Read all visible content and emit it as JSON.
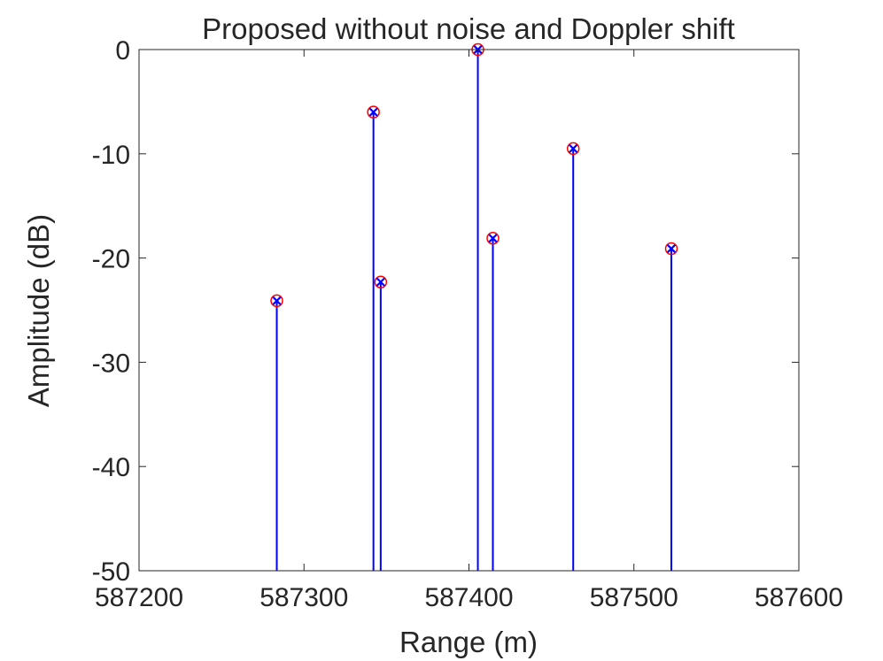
{
  "chart_data": {
    "type": "stem",
    "title": "Proposed without noise and Doppler shift",
    "xlabel": "Range (m)",
    "ylabel": "Amplitude (dB)",
    "xlim": [
      587200,
      587600
    ],
    "ylim": [
      -50,
      0
    ],
    "xticks": [
      587200,
      587300,
      587400,
      587500,
      587600
    ],
    "xtick_labels": [
      "587200",
      "587300",
      "587400",
      "587500",
      "587600"
    ],
    "yticks": [
      0,
      -10,
      -20,
      -30,
      -40,
      -50
    ],
    "ytick_labels": [
      "0",
      "-10",
      "-20",
      "-30",
      "-40",
      "-50"
    ],
    "grid": false,
    "series": [
      {
        "marker": "x",
        "color": "#0000ff",
        "points": [
          {
            "x": 587283.5,
            "y": -24.1
          },
          {
            "x": 587342.1,
            "y": -6.0
          },
          {
            "x": 587346.5,
            "y": -22.3
          },
          {
            "x": 587405.4,
            "y": 0.0
          },
          {
            "x": 587414.5,
            "y": -18.1
          },
          {
            "x": 587463.2,
            "y": -9.5
          },
          {
            "x": 587522.7,
            "y": -19.1
          }
        ]
      },
      {
        "marker": "o",
        "color": "#ff0000",
        "points": [
          {
            "x": 587283.5,
            "y": -24.1
          },
          {
            "x": 587342.1,
            "y": -6.0
          },
          {
            "x": 587346.5,
            "y": -22.3
          },
          {
            "x": 587405.4,
            "y": 0.0
          },
          {
            "x": 587414.5,
            "y": -18.1
          },
          {
            "x": 587463.2,
            "y": -9.5
          },
          {
            "x": 587522.7,
            "y": -19.1
          }
        ]
      }
    ]
  }
}
